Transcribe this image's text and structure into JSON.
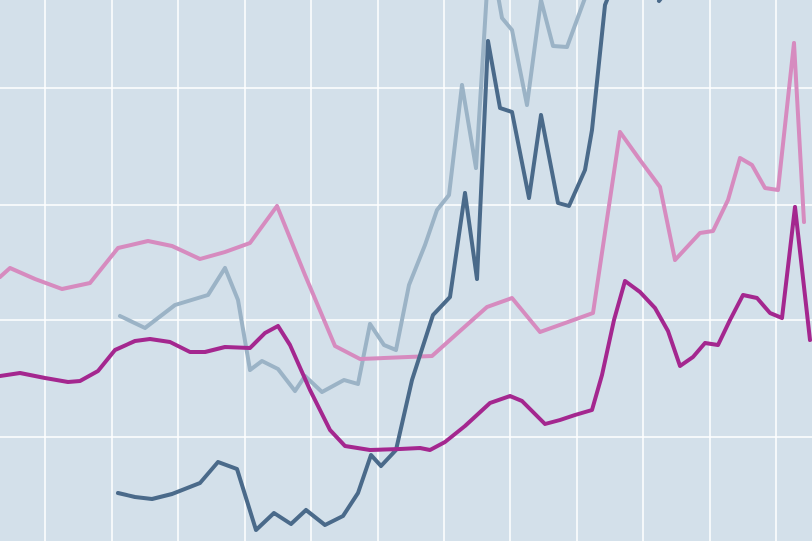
{
  "chart_data": {
    "type": "line",
    "xlim": [
      0,
      812
    ],
    "ylim": [
      0,
      541
    ],
    "xticks": [
      45,
      112,
      178,
      245,
      311,
      378,
      444,
      510,
      577,
      643,
      710,
      776
    ],
    "yticks": [
      104,
      221,
      336,
      453
    ],
    "grid": true,
    "background": "#d3e0ea",
    "grid_color": "#ffffff",
    "series": [
      {
        "color": "#9bb3c6",
        "x": [
          120,
          145,
          175,
          208,
          225,
          238,
          250,
          262,
          278,
          295,
          305,
          322,
          344,
          358,
          370,
          384,
          396,
          409,
          425,
          437,
          449,
          462,
          476,
          487,
          497,
          502,
          512,
          527,
          541,
          553,
          567,
          585
        ],
        "values": [
          225,
          213,
          236,
          246,
          273,
          241,
          171,
          180,
          172,
          150,
          165,
          149,
          161,
          157,
          217,
          196,
          191,
          256,
          296,
          331,
          346,
          456,
          373,
          551,
          551,
          523,
          511,
          436,
          541,
          495,
          494,
          543
        ]
      },
      {
        "color": "#d68bbf",
        "x": [
          0,
          10,
          35,
          62,
          90,
          118,
          148,
          172,
          200,
          225,
          250,
          277,
          305,
          335,
          360,
          432,
          460,
          487,
          512,
          540,
          568,
          593,
          620,
          640,
          660,
          675,
          700,
          713,
          728,
          740,
          752,
          765,
          778,
          794,
          804
        ],
        "values": [
          264,
          273,
          262,
          252,
          258,
          293,
          300,
          295,
          282,
          289,
          298,
          335,
          266,
          195,
          182,
          185,
          210,
          234,
          243,
          209,
          219,
          228,
          409,
          381,
          354,
          281,
          308,
          310,
          341,
          383,
          376,
          353,
          351,
          498,
          319
        ]
      },
      {
        "color": "#4a6a8a",
        "x": [
          118,
          135,
          152,
          172,
          200,
          218,
          237,
          256,
          274,
          291,
          306,
          325,
          343,
          358,
          371,
          381,
          396,
          412,
          433,
          450,
          465,
          477,
          488,
          500,
          512,
          529,
          541,
          558,
          569,
          585,
          592,
          605,
          611,
          635,
          659,
          663
        ],
        "values": [
          48,
          44,
          42,
          47,
          58,
          79,
          72,
          11,
          28,
          17,
          31,
          16,
          25,
          48,
          86,
          75,
          91,
          161,
          226,
          244,
          348,
          262,
          500,
          433,
          429,
          343,
          426,
          338,
          335,
          371,
          411,
          536,
          551,
          null,
          540,
          545
        ]
      },
      {
        "color": "#a4278f",
        "x": [
          0,
          20,
          45,
          68,
          80,
          98,
          115,
          135,
          150,
          170,
          190,
          205,
          225,
          250,
          265,
          278,
          290,
          310,
          330,
          345,
          370,
          400,
          420,
          430,
          445,
          465,
          490,
          510,
          522,
          545,
          560,
          575,
          592,
          602,
          614,
          625,
          640,
          655,
          668,
          680,
          693,
          705,
          718,
          730,
          743,
          757,
          770,
          782,
          795,
          810
        ],
        "values": [
          165,
          168,
          163,
          159,
          160,
          170,
          191,
          200,
          202,
          199,
          189,
          189,
          194,
          193,
          208,
          215,
          196,
          151,
          111,
          95,
          91,
          92,
          93,
          91,
          99,
          115,
          138,
          145,
          140,
          117,
          121,
          126,
          131,
          166,
          221,
          260,
          249,
          233,
          210,
          175,
          184,
          198,
          196,
          221,
          246,
          243,
          228,
          223,
          334,
          201
        ]
      }
    ]
  }
}
